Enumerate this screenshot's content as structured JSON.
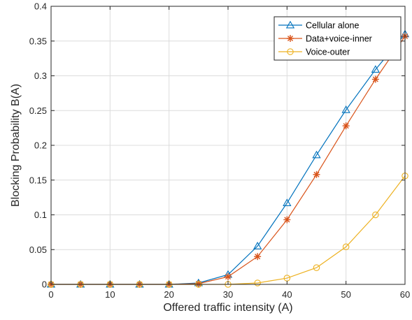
{
  "chart_data": {
    "type": "line",
    "title": "",
    "xlabel": "Offered traffic intensity (A)",
    "ylabel": "Blocking Probability B(A)",
    "xlim": [
      0,
      60
    ],
    "ylim": [
      0,
      0.4
    ],
    "xticks": [
      0,
      10,
      20,
      30,
      40,
      50,
      60
    ],
    "yticks": [
      0,
      0.05,
      0.1,
      0.15,
      0.2,
      0.25,
      0.3,
      0.35,
      0.4
    ],
    "xtick_labels": [
      "0",
      "10",
      "20",
      "30",
      "40",
      "50",
      "60"
    ],
    "ytick_labels": [
      "0",
      "0.05",
      "0.1",
      "0.15",
      "0.2",
      "0.25",
      "0.3",
      "0.35",
      "0.4"
    ],
    "grid": true,
    "legend_position": "top-right",
    "x": [
      0,
      5,
      10,
      15,
      20,
      25,
      30,
      35,
      40,
      45,
      50,
      55,
      60
    ],
    "series": [
      {
        "name": "Cellular alone",
        "color": "#0072BD",
        "marker": "triangle",
        "values": [
          0,
          0,
          0,
          0,
          0,
          0.002,
          0.014,
          0.055,
          0.117,
          0.186,
          0.251,
          0.309,
          0.36
        ]
      },
      {
        "name": "Data+voice-inner",
        "color": "#D95319",
        "marker": "asterisk",
        "values": [
          0,
          0,
          0,
          0,
          0,
          0.001,
          0.011,
          0.04,
          0.093,
          0.158,
          0.228,
          0.295,
          0.357
        ]
      },
      {
        "name": "Voice-outer",
        "color": "#EDB120",
        "marker": "circle",
        "values": [
          0,
          0,
          0,
          0,
          0,
          0,
          0,
          0.002,
          0.009,
          0.024,
          0.054,
          0.1,
          0.156
        ]
      }
    ]
  }
}
